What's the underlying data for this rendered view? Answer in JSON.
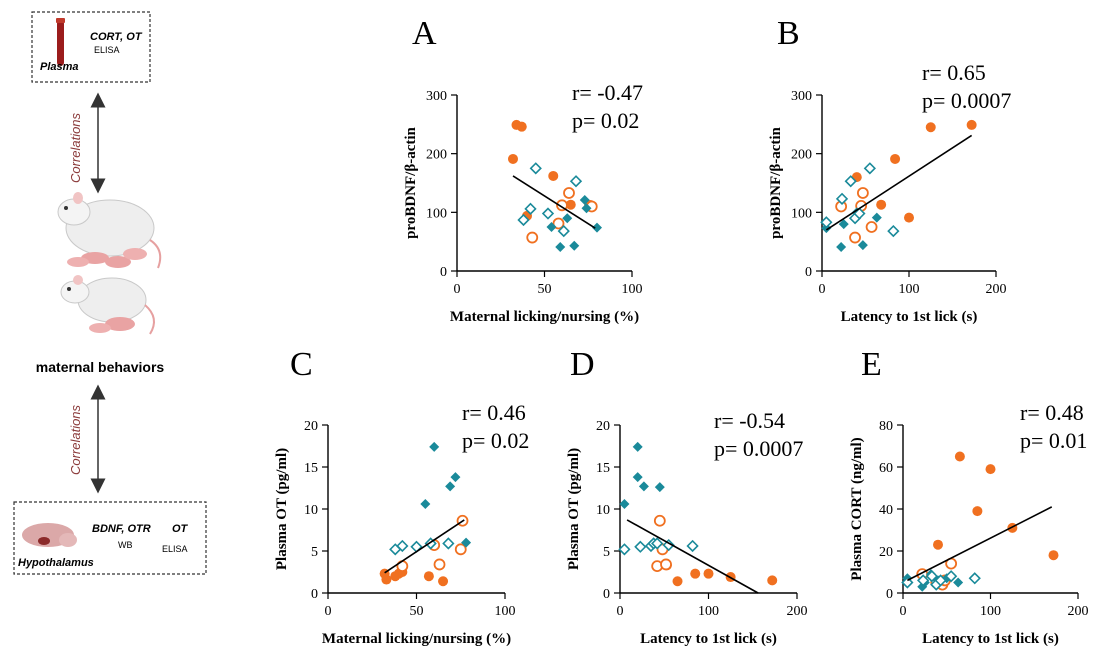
{
  "figure": {
    "accent_colors": {
      "filled_orange": "#f07020",
      "open_orange": "#f07020",
      "filled_teal": "#1a8a9a",
      "open_teal": "#1a8a9a",
      "fit_line": "#000000",
      "arrow_text": "#8b3a3a"
    }
  },
  "schematic": {
    "plasma_box": {
      "line1": "CORT, OT",
      "line2": "ELISA",
      "sample": "Plasma",
      "icon": "blood-tube-icon"
    },
    "correlations_top": "Correlations",
    "correlations_bottom": "Correlations",
    "rat_icon_top": "rat-nursing-pups-icon",
    "rat_icon_bottom": "rat-licking-pups-icon",
    "behaviors_label": "maternal behaviors",
    "hypothalamus_box": {
      "line1": "BDNF, OTR",
      "line1b": "WB",
      "line2": "OT",
      "line2b": "ELISA",
      "sample": "Hypothalamus",
      "icon": "brain-icon"
    }
  },
  "chart_data": [
    {
      "panel": "A",
      "type": "scatter",
      "xlabel": "Maternal licking/nursing (%)",
      "ylabel": "proBDNF/β-actin",
      "xlim": [
        0,
        100
      ],
      "ylim": [
        0,
        300
      ],
      "xticks": [
        0,
        50,
        100
      ],
      "yticks": [
        0,
        100,
        200,
        300
      ],
      "stats": [
        "r= -0.47",
        "p= 0.02"
      ],
      "fit": [
        [
          32,
          162
        ],
        [
          79,
          73
        ]
      ],
      "series": [
        {
          "style": "filled-circle",
          "points": [
            [
              32,
              191
            ],
            [
              34,
              249
            ],
            [
              37,
              246
            ],
            [
              40,
              94
            ],
            [
              55,
              162
            ],
            [
              65,
              113
            ]
          ]
        },
        {
          "style": "open-circle",
          "points": [
            [
              43,
              57
            ],
            [
              58,
              81
            ],
            [
              60,
              112
            ],
            [
              64,
              133
            ],
            [
              76,
              111
            ],
            [
              77,
              110
            ]
          ]
        },
        {
          "style": "filled-diamond",
          "points": [
            [
              54,
              75
            ],
            [
              59,
              41
            ],
            [
              63,
              90
            ],
            [
              67,
              43
            ],
            [
              73,
              121
            ],
            [
              74,
              107
            ],
            [
              80,
              74
            ]
          ]
        },
        {
          "style": "open-diamond",
          "points": [
            [
              38,
              87
            ],
            [
              42,
              106
            ],
            [
              45,
              175
            ],
            [
              52,
              98
            ],
            [
              61,
              68
            ],
            [
              68,
              153
            ]
          ]
        }
      ]
    },
    {
      "panel": "B",
      "type": "scatter",
      "xlabel": "Latency to 1st lick (s)",
      "ylabel": "proBDNF/β-actin",
      "xlim": [
        0,
        200
      ],
      "ylim": [
        0,
        300
      ],
      "xticks": [
        0,
        100,
        200
      ],
      "yticks": [
        0,
        100,
        200,
        300
      ],
      "stats": [
        "r= 0.65",
        "p= 0.0007"
      ],
      "fit": [
        [
          5,
          70
        ],
        [
          172,
          231
        ]
      ],
      "series": [
        {
          "style": "filled-circle",
          "points": [
            [
              40,
              160
            ],
            [
              68,
              113
            ],
            [
              84,
              191
            ],
            [
              100,
              91
            ],
            [
              125,
              245
            ],
            [
              172,
              249
            ]
          ]
        },
        {
          "style": "open-circle",
          "points": [
            [
              22,
              110
            ],
            [
              38,
              57
            ],
            [
              45,
              111
            ],
            [
              47,
              133
            ],
            [
              57,
              75
            ]
          ]
        },
        {
          "style": "filled-diamond",
          "points": [
            [
              5,
              73
            ],
            [
              22,
              41
            ],
            [
              25,
              80
            ],
            [
              40,
              100
            ],
            [
              47,
              44
            ],
            [
              63,
              91
            ]
          ]
        },
        {
          "style": "open-diamond",
          "points": [
            [
              5,
              83
            ],
            [
              23,
              123
            ],
            [
              33,
              153
            ],
            [
              38,
              90
            ],
            [
              43,
              98
            ],
            [
              55,
              175
            ],
            [
              82,
              68
            ]
          ]
        }
      ]
    },
    {
      "panel": "C",
      "type": "scatter",
      "xlabel": "Maternal licking/nursing (%)",
      "ylabel": "Plasma OT (pg/ml)",
      "xlim": [
        0,
        100
      ],
      "ylim": [
        0,
        20
      ],
      "xticks": [
        0,
        50,
        100
      ],
      "yticks": [
        0,
        5,
        10,
        15,
        20
      ],
      "stats": [
        "r= 0.46",
        "p= 0.02"
      ],
      "fit": [
        [
          32,
          2.4
        ],
        [
          77,
          8.7
        ]
      ],
      "series": [
        {
          "style": "filled-circle",
          "points": [
            [
              32,
              2.3
            ],
            [
              33,
              1.6
            ],
            [
              38,
              2.0
            ],
            [
              40,
              2.3
            ],
            [
              42,
              2.5
            ],
            [
              57,
              2.0
            ],
            [
              63,
              3.3
            ],
            [
              65,
              1.4
            ]
          ]
        },
        {
          "style": "open-circle",
          "points": [
            [
              42,
              3.2
            ],
            [
              60,
              5.7
            ],
            [
              63,
              3.4
            ],
            [
              75,
              5.2
            ],
            [
              76,
              8.6
            ]
          ]
        },
        {
          "style": "filled-diamond",
          "points": [
            [
              55,
              10.6
            ],
            [
              60,
              17.4
            ],
            [
              69,
              12.7
            ],
            [
              72,
              13.8
            ],
            [
              78,
              6.0
            ]
          ]
        },
        {
          "style": "open-diamond",
          "points": [
            [
              38,
              5.2
            ],
            [
              42,
              5.6
            ],
            [
              50,
              5.5
            ],
            [
              58,
              5.9
            ],
            [
              68,
              5.9
            ]
          ]
        }
      ]
    },
    {
      "panel": "D",
      "type": "scatter",
      "xlabel": "Latency to 1st lick (s)",
      "ylabel": "Plasma OT (pg/ml)",
      "xlim": [
        0,
        200
      ],
      "ylim": [
        0,
        20
      ],
      "xticks": [
        0,
        100,
        200
      ],
      "yticks": [
        0,
        5,
        10,
        15,
        20
      ],
      "stats": [
        "r= -0.54",
        "p= 0.0007"
      ],
      "fit": [
        [
          8,
          8.7
        ],
        [
          156,
          0
        ]
      ],
      "series": [
        {
          "style": "filled-circle",
          "points": [
            [
              53,
              3.3
            ],
            [
              65,
              1.4
            ],
            [
              85,
              2.3
            ],
            [
              100,
              2.3
            ],
            [
              125,
              1.9
            ],
            [
              172,
              1.5
            ]
          ]
        },
        {
          "style": "open-circle",
          "points": [
            [
              42,
              3.2
            ],
            [
              45,
              8.6
            ],
            [
              52,
              3.4
            ],
            [
              48,
              5.2
            ]
          ]
        },
        {
          "style": "filled-diamond",
          "points": [
            [
              5,
              10.6
            ],
            [
              20,
              17.4
            ],
            [
              20,
              13.8
            ],
            [
              27,
              12.7
            ],
            [
              38,
              6.0
            ],
            [
              45,
              12.6
            ]
          ]
        },
        {
          "style": "open-diamond",
          "points": [
            [
              5,
              5.2
            ],
            [
              23,
              5.5
            ],
            [
              35,
              5.6
            ],
            [
              38,
              5.9
            ],
            [
              42,
              5.9
            ],
            [
              55,
              5.7
            ],
            [
              82,
              5.6
            ]
          ]
        }
      ]
    },
    {
      "panel": "E",
      "type": "scatter",
      "xlabel": "Latency to 1st lick (s)",
      "ylabel": "Plasma CORT (ng/ml)",
      "xlim": [
        0,
        200
      ],
      "ylim": [
        0,
        80
      ],
      "xticks": [
        0,
        100,
        200
      ],
      "yticks": [
        0,
        20,
        40,
        60,
        80
      ],
      "stats": [
        "r= 0.48",
        "p= 0.01"
      ],
      "fit": [
        [
          5,
          6
        ],
        [
          170,
          41
        ]
      ],
      "series": [
        {
          "style": "filled-circle",
          "points": [
            [
              40,
              23
            ],
            [
              65,
              65
            ],
            [
              85,
              39
            ],
            [
              100,
              59
            ],
            [
              125,
              31
            ],
            [
              172,
              18
            ]
          ]
        },
        {
          "style": "open-circle",
          "points": [
            [
              22,
              9
            ],
            [
              38,
              5
            ],
            [
              45,
              4
            ],
            [
              48,
              6
            ],
            [
              55,
              14
            ]
          ]
        },
        {
          "style": "filled-diamond",
          "points": [
            [
              5,
              7
            ],
            [
              22,
              3
            ],
            [
              25,
              5
            ],
            [
              32,
              9
            ],
            [
              40,
              6
            ],
            [
              50,
              7
            ],
            [
              63,
              5
            ]
          ]
        },
        {
          "style": "open-diamond",
          "points": [
            [
              5,
              5
            ],
            [
              23,
              6
            ],
            [
              33,
              8
            ],
            [
              38,
              4
            ],
            [
              43,
              6
            ],
            [
              55,
              8
            ],
            [
              82,
              7
            ]
          ]
        }
      ]
    }
  ]
}
